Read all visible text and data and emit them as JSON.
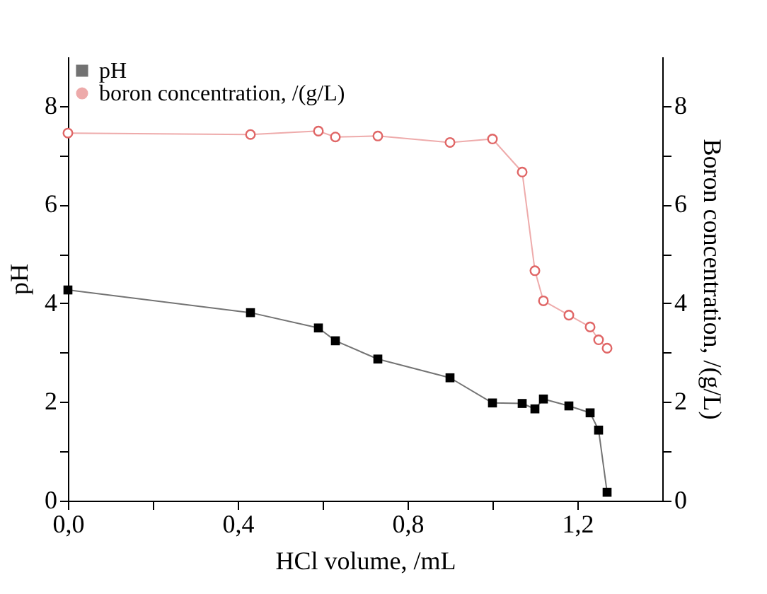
{
  "chart_data": {
    "type": "line",
    "xlabel": "HCl volume, /mL",
    "ylabel": "pH",
    "y2label": "Boron concentration, /(g/L)",
    "x": [
      0,
      0.43,
      0.59,
      0.63,
      0.73,
      0.9,
      1.0,
      1.07,
      1.1,
      1.12,
      1.18,
      1.23,
      1.25,
      1.27
    ],
    "series": [
      {
        "name": "pH",
        "color": "#000000",
        "marker": "square",
        "values": [
          4.27,
          3.81,
          3.5,
          3.24,
          2.87,
          2.49,
          1.98,
          1.97,
          1.86,
          2.06,
          1.92,
          1.78,
          1.43,
          0.17
        ]
      },
      {
        "name": "boron concentration, /(g/L)",
        "color": "#e06666",
        "marker": "circle",
        "axis": "y2",
        "values": [
          7.45,
          7.42,
          7.49,
          7.37,
          7.39,
          7.26,
          7.33,
          6.66,
          4.66,
          4.05,
          3.76,
          3.52,
          3.26,
          3.09
        ]
      }
    ],
    "xlim": [
      0,
      1.4
    ],
    "xticks": [
      {
        "value": 0,
        "label": "0,0"
      },
      {
        "value": 0.2,
        "label": null
      },
      {
        "value": 0.4,
        "label": "0,4"
      },
      {
        "value": 0.6,
        "label": null
      },
      {
        "value": 0.8,
        "label": "0,8"
      },
      {
        "value": 1.0,
        "label": null
      },
      {
        "value": 1.2,
        "label": "1,2"
      }
    ],
    "ylim": [
      0,
      9
    ],
    "yticks": [
      0,
      {
        "value": 1,
        "label": null
      },
      2,
      {
        "value": 3,
        "label": null
      },
      4,
      {
        "value": 5,
        "label": null
      },
      6,
      {
        "value": 7,
        "label": null
      },
      8
    ],
    "y2lim": [
      0,
      9
    ],
    "y2ticks": [
      0,
      {
        "value": 1,
        "label": null
      },
      2,
      {
        "value": 3,
        "label": null
      },
      4,
      {
        "value": 5,
        "label": null
      },
      6,
      {
        "value": 7,
        "label": null
      },
      8
    ],
    "legend": "top left",
    "grid": false
  }
}
